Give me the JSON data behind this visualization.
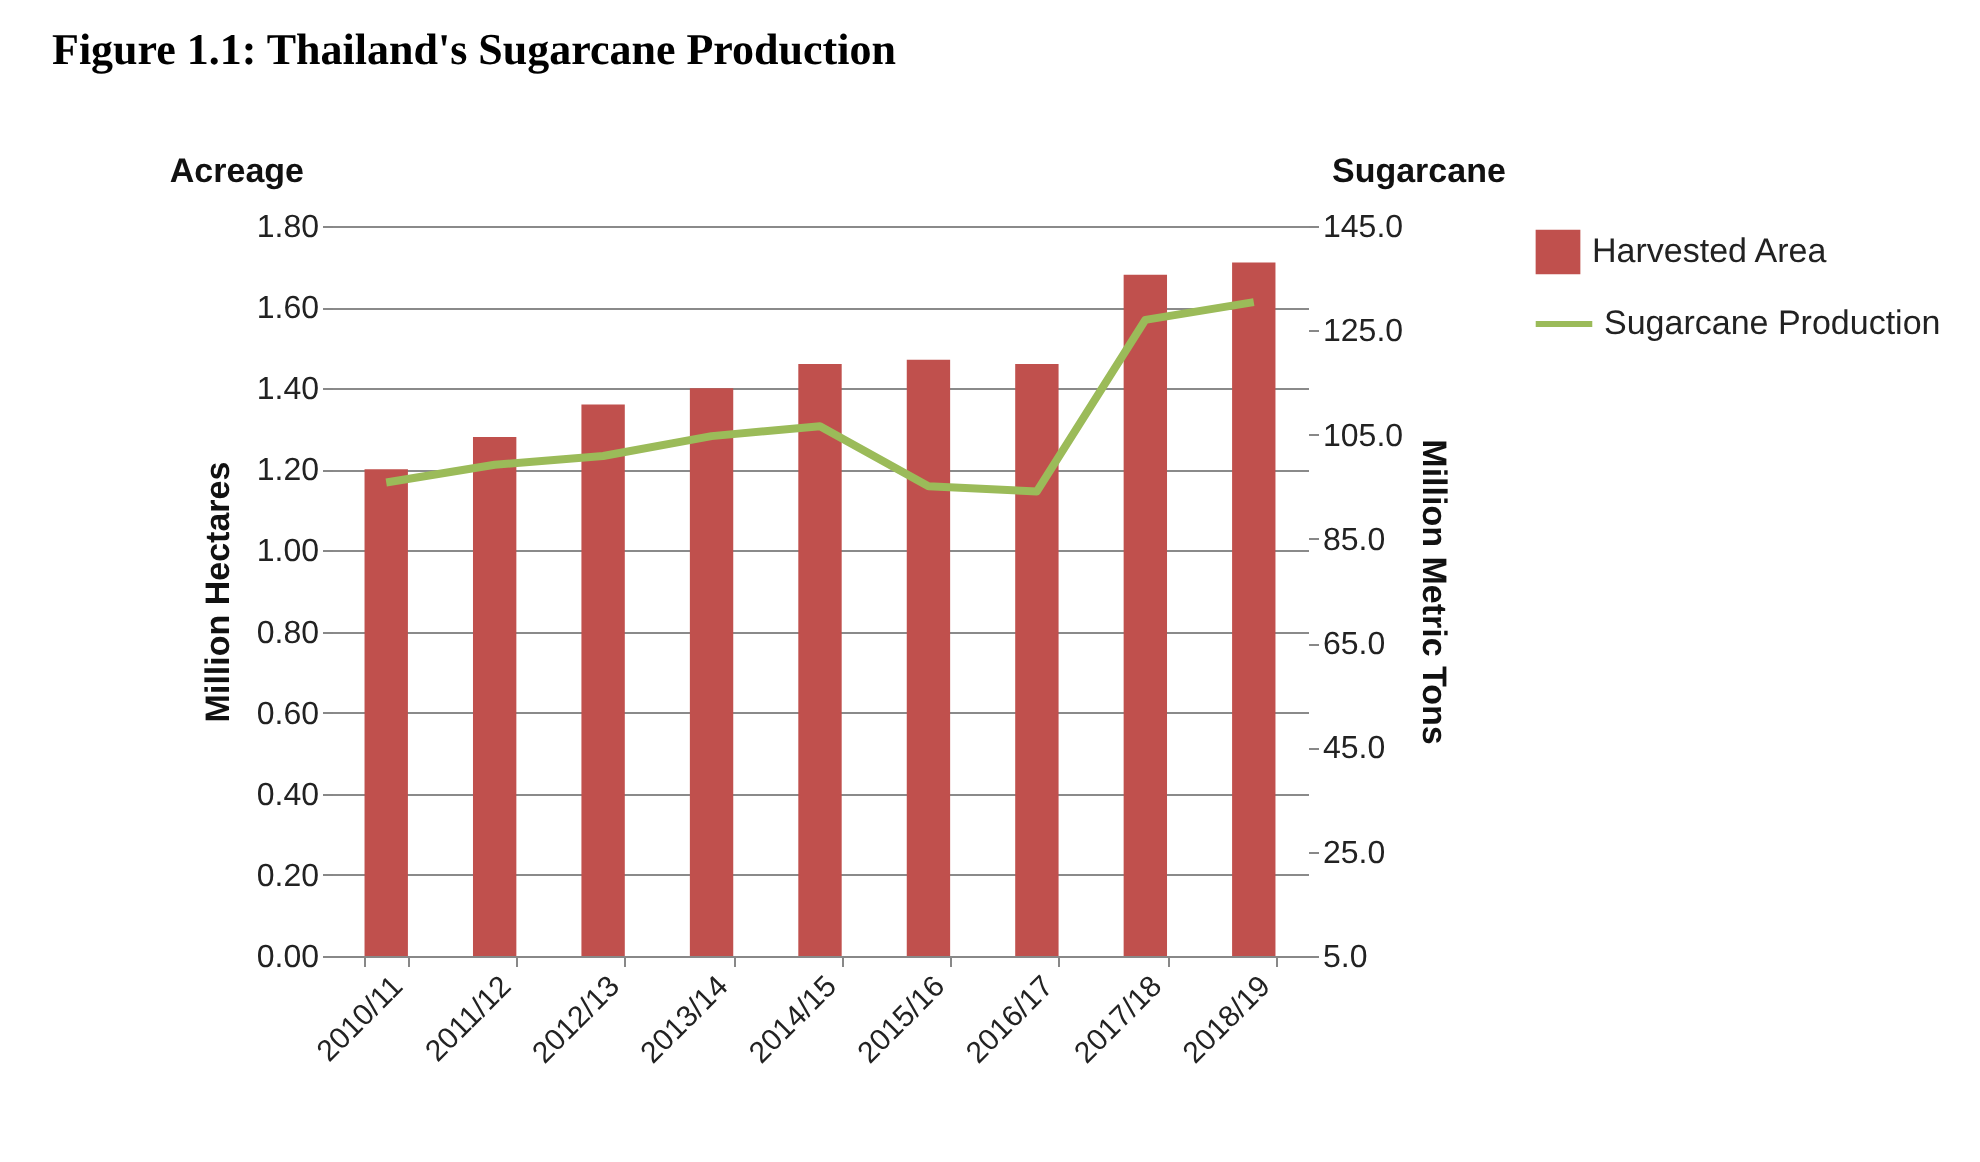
{
  "chart_data": {
    "type": "bar",
    "title": "Figure 1.1: Thailand's Sugarcane Production",
    "annotations": [
      "Acreage",
      "Sugarcane"
    ],
    "ylabel": "Million Hectares",
    "y2label": "Million Metric Tons",
    "categories": [
      "2010/11",
      "2011/12",
      "2012/13",
      "2013/14",
      "2014/15",
      "2015/16",
      "2016/17",
      "2017/18",
      "2018/19"
    ],
    "series": [
      {
        "name": "Harvested Area",
        "color": "#c0504d",
        "values": [
          1.2,
          1.28,
          1.36,
          1.4,
          1.46,
          1.47,
          1.46,
          1.68,
          1.71
        ]
      },
      {
        "name": "Sugarcane Production",
        "type": "line",
        "axis": "y2",
        "color": "#9bbb59",
        "values": [
          95.8,
          99.2,
          100.9,
          104.7,
          106.6,
          95.1,
          94.1,
          127.0,
          130.4
        ]
      }
    ],
    "ylim": [
      0,
      1.8
    ],
    "yticks": [
      {
        "value": 0,
        "label": "0.00"
      },
      {
        "value": 0.2,
        "label": "0.20"
      },
      {
        "value": 0.4,
        "label": "0.40"
      },
      {
        "value": 0.6,
        "label": "0.60"
      },
      {
        "value": 0.8,
        "label": "0.80"
      },
      {
        "value": 1.0,
        "label": "1.00"
      },
      {
        "value": 1.2,
        "label": "1.20"
      },
      {
        "value": 1.4,
        "label": "1.40"
      },
      {
        "value": 1.6,
        "label": "1.60"
      },
      {
        "value": 1.8,
        "label": "1.80"
      }
    ],
    "y2lim": [
      5,
      145
    ],
    "y2ticks": [
      {
        "value": 5,
        "label": "5.0"
      },
      {
        "value": 25,
        "label": "25.0"
      },
      {
        "value": 45,
        "label": "45.0"
      },
      {
        "value": 65,
        "label": "65.0"
      },
      {
        "value": 85,
        "label": "85.0"
      },
      {
        "value": 105,
        "label": "105.0"
      },
      {
        "value": 125,
        "label": "125.0"
      },
      {
        "value": 145,
        "label": "145.0"
      }
    ],
    "grid": "y",
    "legend": "right",
    "marker": "none",
    "line_style": "solid"
  }
}
